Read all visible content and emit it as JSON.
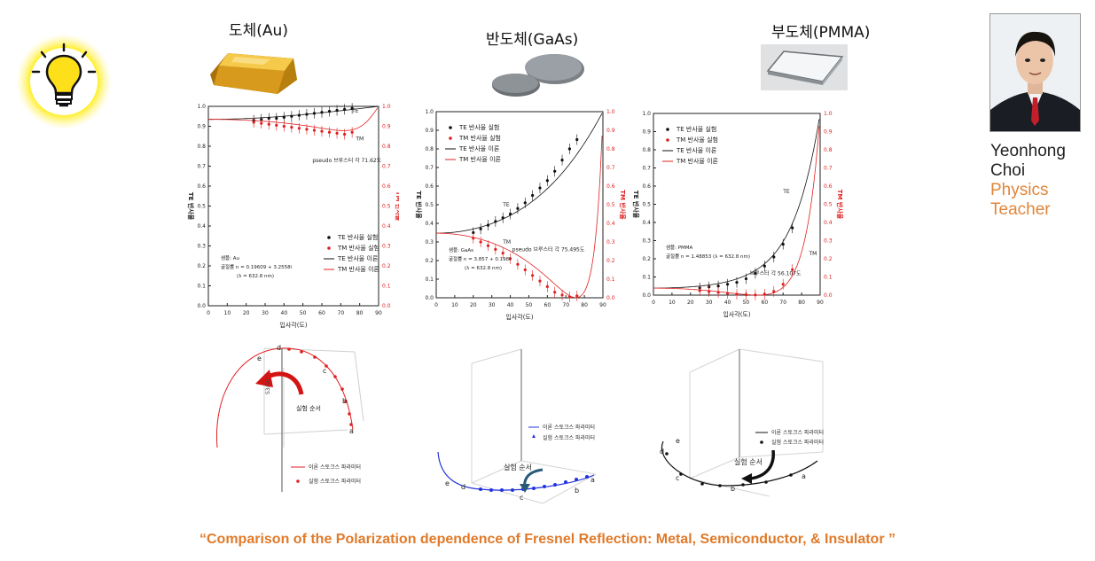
{
  "headings": {
    "au": "도체(Au)",
    "gaas": "반도체(GaAs)",
    "pmma": "부도체(PMMA)"
  },
  "profile": {
    "first": "Yeonhong",
    "last": "Choi",
    "role1": "Physics",
    "role2": "Teacher"
  },
  "caption": "“Comparison of the Polarization dependence of Fresnel Reflection: Metal, Semiconductor, & Insulator ”",
  "axis": {
    "xlabel": "입사각(도)",
    "yleft": "TE 반사율",
    "yright": "TM 반사율"
  },
  "xticks": [
    "0",
    "10",
    "20",
    "30",
    "40",
    "50",
    "60",
    "70",
    "80",
    "90"
  ],
  "yticks": [
    "0.0",
    "0.1",
    "0.2",
    "0.3",
    "0.4",
    "0.5",
    "0.6",
    "0.7",
    "0.8",
    "0.9",
    "1.0"
  ],
  "legend": {
    "te_exp": "TE 반사율 실험",
    "tm_exp": "TM 반사율 실험",
    "te_th": "TE 반사율 이론",
    "tm_th": "TM 반사율 이론"
  },
  "colors": {
    "te": "#111111",
    "tm": "#e02020",
    "stokes3d": "#2233dd",
    "caption": "#e07a2a"
  },
  "charts": [
    {
      "id": "au",
      "sample": "샘플: Au",
      "index": "굴절률  n = 0.19609 + 3.2558i",
      "lambda": "(λ = 632.8 nm)",
      "brewster": "pseudo 브루스터 각  71.62도",
      "te_label": "TE",
      "tm_label": "TM",
      "chart_data": {
        "type": "line",
        "x": [
          24,
          28,
          32,
          36,
          40,
          44,
          48,
          52,
          56,
          60,
          64,
          68,
          72,
          76
        ],
        "series": [
          {
            "name": "TE 반사율 실험",
            "values": [
              0.93,
              0.935,
              0.94,
              0.94,
              0.945,
              0.95,
              0.955,
              0.96,
              0.965,
              0.97,
              0.975,
              0.98,
              0.985,
              0.99
            ]
          },
          {
            "name": "TM 반사율 실험",
            "values": [
              0.92,
              0.915,
              0.91,
              0.905,
              0.9,
              0.895,
              0.89,
              0.885,
              0.88,
              0.875,
              0.87,
              0.865,
              0.86,
              0.87
            ]
          }
        ],
        "xlim": [
          0,
          90
        ],
        "ylim": [
          0,
          1
        ]
      }
    },
    {
      "id": "gaas",
      "sample": "샘플: GaAs",
      "index": "굴절률  n = 3.857 + 0.198i",
      "lambda": "(λ = 632.8 nm)",
      "brewster": "pseudo 브루스터 각  75.495도",
      "te_label": "TE",
      "tm_label": "TM",
      "chart_data": {
        "type": "line",
        "x": [
          20,
          24,
          28,
          32,
          36,
          40,
          44,
          48,
          52,
          56,
          60,
          64,
          68,
          72,
          76
        ],
        "series": [
          {
            "name": "TE 반사율 실험",
            "values": [
              0.35,
              0.37,
              0.39,
              0.41,
              0.43,
              0.45,
              0.48,
              0.51,
              0.55,
              0.59,
              0.63,
              0.68,
              0.74,
              0.8,
              0.85
            ]
          },
          {
            "name": "TM 반사율 실험",
            "values": [
              0.32,
              0.3,
              0.28,
              0.26,
              0.24,
              0.21,
              0.18,
              0.15,
              0.12,
              0.09,
              0.06,
              0.03,
              0.015,
              0.005,
              0.01
            ]
          }
        ],
        "xlim": [
          0,
          90
        ],
        "ylim": [
          0,
          1
        ]
      }
    },
    {
      "id": "pmma",
      "sample": "샘플: PMMA",
      "index": "굴절률 n = 1.48853 (λ = 632.8 nm)",
      "lambda": "",
      "brewster": "브루스터 각  56.107도",
      "te_label": "TE",
      "tm_label": "TM",
      "chart_data": {
        "type": "line",
        "x": [
          25,
          30,
          35,
          40,
          45,
          50,
          55,
          60,
          65,
          70,
          75
        ],
        "series": [
          {
            "name": "TE 반사율 실험",
            "values": [
              0.04,
              0.045,
              0.05,
              0.06,
              0.07,
              0.09,
              0.12,
              0.16,
              0.21,
              0.28,
              0.37
            ]
          },
          {
            "name": "TM 반사율 실험",
            "values": [
              0.025,
              0.02,
              0.015,
              0.01,
              0.005,
              0.002,
              0.001,
              0.005,
              0.02,
              0.06,
              0.14
            ]
          }
        ],
        "xlim": [
          0,
          90
        ],
        "ylim": [
          0,
          1
        ]
      }
    }
  ],
  "stokes": {
    "au_theory": "이론 스토크스 파라미터",
    "au_exp": "실험 스토크스 파라미터",
    "order": "실험 순서",
    "s3": "S3/S0",
    "gaas_theory": "이론 스토크스 파라미터",
    "gaas_exp": "실험 스토크스 파라미터",
    "pmma_theory": "이론 스토크스 파라미터",
    "pmma_exp": "실험 스토크스 파라미터",
    "letters": [
      "a",
      "b",
      "c",
      "d",
      "e"
    ]
  }
}
